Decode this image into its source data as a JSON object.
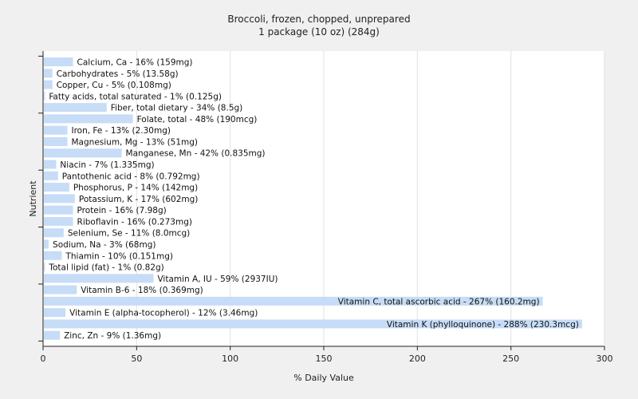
{
  "chart_data": {
    "type": "bar",
    "orientation": "horizontal",
    "title": "Broccoli, frozen, chopped, unprepared",
    "subtitle": "1 package (10 oz) (284g)",
    "xlabel": "% Daily Value",
    "ylabel": "Nutrient",
    "xlim": [
      0,
      300
    ],
    "xticks": [
      "0",
      "50",
      "100",
      "150",
      "200",
      "250",
      "300"
    ],
    "grid": true,
    "bar_color": "#c6dcf7",
    "categories": [
      "Calcium, Ca - 16% (159mg)",
      "Carbohydrates - 5% (13.58g)",
      "Copper, Cu - 5% (0.108mg)",
      "Fatty acids, total saturated - 1% (0.125g)",
      "Fiber, total dietary - 34% (8.5g)",
      "Folate, total - 48% (190mcg)",
      "Iron, Fe - 13% (2.30mg)",
      "Magnesium, Mg - 13% (51mg)",
      "Manganese, Mn - 42% (0.835mg)",
      "Niacin - 7% (1.335mg)",
      "Pantothenic acid - 8% (0.792mg)",
      "Phosphorus, P - 14% (142mg)",
      "Potassium, K - 17% (602mg)",
      "Protein - 16% (7.98g)",
      "Riboflavin - 16% (0.273mg)",
      "Selenium, Se - 11% (8.0mcg)",
      "Sodium, Na - 3% (68mg)",
      "Thiamin - 10% (0.151mg)",
      "Total lipid (fat) - 1% (0.82g)",
      "Vitamin A, IU - 59% (2937IU)",
      "Vitamin B-6 - 18% (0.369mg)",
      "Vitamin C, total ascorbic acid - 267% (160.2mg)",
      "Vitamin E (alpha-tocopherol) - 12% (3.46mg)",
      "Vitamin K (phylloquinone) - 288% (230.3mcg)",
      "Zinc, Zn - 9% (1.36mg)"
    ],
    "values": [
      16,
      5,
      5,
      1,
      34,
      48,
      13,
      13,
      42,
      7,
      8,
      14,
      17,
      16,
      16,
      11,
      3,
      10,
      1,
      59,
      18,
      267,
      12,
      288,
      9
    ]
  }
}
